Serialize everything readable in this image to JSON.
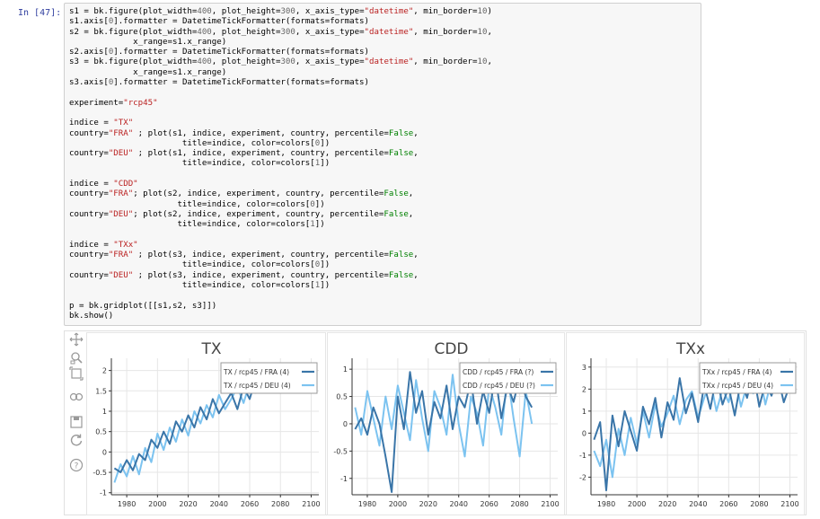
{
  "prompt": "In [47]:",
  "code_lines": [
    [
      [
        "s1 = bk.figure(plot_width=",
        "t"
      ],
      [
        "400",
        "n"
      ],
      [
        ", plot_height=",
        "t"
      ],
      [
        "300",
        "n"
      ],
      [
        ", x_axis_type=",
        "t"
      ],
      [
        "\"datetime\"",
        "s"
      ],
      [
        ", min_border=",
        "t"
      ],
      [
        "10",
        "n"
      ],
      [
        ")",
        "t"
      ]
    ],
    [
      [
        "s1.axis[",
        "t"
      ],
      [
        "0",
        "n"
      ],
      [
        "].formatter = DatetimeTickFormatter(formats=formats)",
        "t"
      ]
    ],
    [
      [
        "s2 = bk.figure(plot_width=",
        "t"
      ],
      [
        "400",
        "n"
      ],
      [
        ", plot_height=",
        "t"
      ],
      [
        "300",
        "n"
      ],
      [
        ", x_axis_type=",
        "t"
      ],
      [
        "\"datetime\"",
        "s"
      ],
      [
        ", min_border=",
        "t"
      ],
      [
        "10",
        "n"
      ],
      [
        ",",
        "t"
      ]
    ],
    [
      [
        "             x_range=s1.x_range)",
        "t"
      ]
    ],
    [
      [
        "s2.axis[",
        "t"
      ],
      [
        "0",
        "n"
      ],
      [
        "].formatter = DatetimeTickFormatter(formats=formats)",
        "t"
      ]
    ],
    [
      [
        "s3 = bk.figure(plot_width=",
        "t"
      ],
      [
        "400",
        "n"
      ],
      [
        ", plot_height=",
        "t"
      ],
      [
        "300",
        "n"
      ],
      [
        ", x_axis_type=",
        "t"
      ],
      [
        "\"datetime\"",
        "s"
      ],
      [
        ", min_border=",
        "t"
      ],
      [
        "10",
        "n"
      ],
      [
        ",",
        "t"
      ]
    ],
    [
      [
        "             x_range=s1.x_range)",
        "t"
      ]
    ],
    [
      [
        "s3.axis[",
        "t"
      ],
      [
        "0",
        "n"
      ],
      [
        "].formatter = DatetimeTickFormatter(formats=formats)",
        "t"
      ]
    ],
    [
      [
        "",
        "t"
      ]
    ],
    [
      [
        "experiment=",
        "t"
      ],
      [
        "\"rcp45\"",
        "s"
      ]
    ],
    [
      [
        "",
        "t"
      ]
    ],
    [
      [
        "indice = ",
        "t"
      ],
      [
        "\"TX\"",
        "s"
      ]
    ],
    [
      [
        "country=",
        "t"
      ],
      [
        "\"FRA\"",
        "s"
      ],
      [
        " ; plot(s1, indice, experiment, country, percentile=",
        "t"
      ],
      [
        "False",
        "k"
      ],
      [
        ",",
        "t"
      ]
    ],
    [
      [
        "                       title=indice, color=colors[",
        "t"
      ],
      [
        "0",
        "n"
      ],
      [
        "])",
        "t"
      ]
    ],
    [
      [
        "country=",
        "t"
      ],
      [
        "\"DEU\"",
        "s"
      ],
      [
        " ; plot(s1, indice, experiment, country, percentile=",
        "t"
      ],
      [
        "False",
        "k"
      ],
      [
        ",",
        "t"
      ]
    ],
    [
      [
        "                       title=indice, color=colors[",
        "t"
      ],
      [
        "1",
        "n"
      ],
      [
        "])",
        "t"
      ]
    ],
    [
      [
        "",
        "t"
      ]
    ],
    [
      [
        "indice = ",
        "t"
      ],
      [
        "\"CDD\"",
        "s"
      ]
    ],
    [
      [
        "country=",
        "t"
      ],
      [
        "\"FRA\"",
        "s"
      ],
      [
        "; plot(s2, indice, experiment, country, percentile=",
        "t"
      ],
      [
        "False",
        "k"
      ],
      [
        ",",
        "t"
      ]
    ],
    [
      [
        "                      title=indice, color=colors[",
        "t"
      ],
      [
        "0",
        "n"
      ],
      [
        "])",
        "t"
      ]
    ],
    [
      [
        "country=",
        "t"
      ],
      [
        "\"DEU\"",
        "s"
      ],
      [
        "; plot(s2, indice, experiment, country, percentile=",
        "t"
      ],
      [
        "False",
        "k"
      ],
      [
        ",",
        "t"
      ]
    ],
    [
      [
        "                      title=indice, color=colors[",
        "t"
      ],
      [
        "1",
        "n"
      ],
      [
        "])",
        "t"
      ]
    ],
    [
      [
        "",
        "t"
      ]
    ],
    [
      [
        "indice = ",
        "t"
      ],
      [
        "\"TXx\"",
        "s"
      ]
    ],
    [
      [
        "country=",
        "t"
      ],
      [
        "\"FRA\"",
        "s"
      ],
      [
        " ; plot(s3, indice, experiment, country, percentile=",
        "t"
      ],
      [
        "False",
        "k"
      ],
      [
        ",",
        "t"
      ]
    ],
    [
      [
        "                       title=indice, color=colors[",
        "t"
      ],
      [
        "0",
        "n"
      ],
      [
        "])",
        "t"
      ]
    ],
    [
      [
        "country=",
        "t"
      ],
      [
        "\"DEU\"",
        "s"
      ],
      [
        " ; plot(s3, indice, experiment, country, percentile=",
        "t"
      ],
      [
        "False",
        "k"
      ],
      [
        ",",
        "t"
      ]
    ],
    [
      [
        "                       title=indice, color=colors[",
        "t"
      ],
      [
        "1",
        "n"
      ],
      [
        "])",
        "t"
      ]
    ],
    [
      [
        "",
        "t"
      ]
    ],
    [
      [
        "p = bk.gridplot([[s1,s2, s3]])",
        "t"
      ]
    ],
    [
      [
        "bk.show()",
        "t"
      ]
    ]
  ],
  "toolbar": {
    "tools": [
      "pan-icon",
      "wheel-zoom-icon",
      "box-zoom-icon",
      "resize-icon",
      "save-icon",
      "reset-icon",
      "help-icon"
    ]
  },
  "colors": {
    "dark": "#3a75a8",
    "light": "#7cc3f0",
    "grid": "#e6e6e6"
  },
  "chart_data": [
    {
      "type": "line",
      "title": "TX",
      "x_ticks": [
        "1980",
        "2000",
        "2020",
        "2040",
        "2060",
        "2080",
        "2100"
      ],
      "y_ticks": [
        "-1",
        "-0.5",
        "0",
        "0.5",
        "1",
        "1.5",
        "2"
      ],
      "xlim": [
        1970,
        2105
      ],
      "ylim": [
        -1.05,
        2.3
      ],
      "legend_position": "top-right",
      "series": [
        {
          "name": "TX / rcp45 / FRA (4)",
          "color": "dark",
          "x": [
            1972,
            1976,
            1980,
            1984,
            1988,
            1992,
            1996,
            2000,
            2004,
            2008,
            2012,
            2016,
            2020,
            2024,
            2028,
            2032,
            2036,
            2040,
            2044,
            2048,
            2052,
            2056,
            2060,
            2064,
            2068,
            2072,
            2076,
            2080,
            2084,
            2088,
            2092,
            2096,
            2100
          ],
          "y": [
            -0.4,
            -0.5,
            -0.2,
            -0.45,
            -0.05,
            -0.2,
            0.3,
            0.1,
            0.5,
            0.2,
            0.75,
            0.5,
            0.9,
            0.6,
            1.1,
            0.8,
            1.3,
            0.95,
            1.2,
            1.45,
            1.05,
            1.6,
            1.3,
            1.8,
            1.5,
            1.75,
            1.55,
            1.9,
            1.6,
            1.85,
            1.7,
            1.95,
            1.75
          ]
        },
        {
          "name": "TX / rcp45 / DEU (4)",
          "color": "light",
          "x": [
            1972,
            1976,
            1980,
            1984,
            1988,
            1992,
            1996,
            2000,
            2004,
            2008,
            2012,
            2016,
            2020,
            2024,
            2028,
            2032,
            2036,
            2040,
            2044,
            2048,
            2052,
            2056,
            2060,
            2064,
            2068,
            2072,
            2076,
            2080,
            2084,
            2088,
            2092,
            2096,
            2100
          ],
          "y": [
            -0.75,
            -0.3,
            -0.6,
            -0.1,
            -0.55,
            0.1,
            -0.25,
            0.45,
            0.05,
            0.6,
            0.25,
            0.8,
            0.4,
            1.0,
            0.7,
            1.15,
            0.85,
            1.4,
            1.05,
            1.3,
            1.6,
            1.2,
            1.7,
            1.45,
            1.9,
            1.55,
            2.0,
            1.65,
            1.85,
            1.5,
            2.05,
            1.7,
            1.95
          ]
        }
      ]
    },
    {
      "type": "line",
      "title": "CDD",
      "x_ticks": [
        "1980",
        "2000",
        "2020",
        "2040",
        "2060",
        "2080",
        "2100"
      ],
      "y_ticks": [
        "-1",
        "-0.5",
        "0",
        "0.5",
        "1"
      ],
      "xlim": [
        1970,
        2105
      ],
      "ylim": [
        -1.3,
        1.2
      ],
      "legend_position": "top-right",
      "series": [
        {
          "name": "CDD / rcp45 / FRA (?)",
          "color": "dark",
          "x": [
            1972,
            1976,
            1980,
            1984,
            1988,
            1992,
            1996,
            2000,
            2004,
            2008,
            2012,
            2016,
            2020,
            2024,
            2028,
            2032,
            2036,
            2040,
            2044,
            2048,
            2052,
            2056,
            2060,
            2064,
            2068,
            2072,
            2076,
            2080,
            2084,
            2088
          ],
          "y": [
            -0.1,
            0.1,
            -0.2,
            0.3,
            0.0,
            -0.6,
            -1.25,
            0.5,
            -0.1,
            0.95,
            0.2,
            0.6,
            -0.2,
            0.4,
            0.1,
            0.7,
            -0.1,
            0.5,
            0.3,
            0.8,
            0.0,
            0.6,
            0.2,
            0.9,
            0.1,
            0.7,
            0.4,
            0.85,
            0.5,
            0.3
          ]
        },
        {
          "name": "CDD / rcp45 / DEU (?)",
          "color": "light",
          "x": [
            1972,
            1976,
            1980,
            1984,
            1988,
            1992,
            1996,
            2000,
            2004,
            2008,
            2012,
            2016,
            2020,
            2024,
            2028,
            2032,
            2036,
            2040,
            2044,
            2048,
            2052,
            2056,
            2060,
            2064,
            2068,
            2072,
            2076,
            2080,
            2084,
            2088
          ],
          "y": [
            0.3,
            -0.2,
            0.6,
            0.1,
            -0.4,
            0.5,
            -0.1,
            0.7,
            0.2,
            -0.3,
            0.8,
            0.1,
            -0.5,
            0.6,
            0.3,
            -0.2,
            0.9,
            0.0,
            -0.6,
            0.5,
            0.2,
            -0.4,
            0.7,
            0.3,
            -0.2,
            0.9,
            0.1,
            -0.6,
            0.6,
            0.0
          ]
        }
      ]
    },
    {
      "type": "line",
      "title": "TXx",
      "x_ticks": [
        "1980",
        "2000",
        "2020",
        "2040",
        "2060",
        "2080",
        "2100"
      ],
      "y_ticks": [
        "-2",
        "-1",
        "0",
        "1",
        "2",
        "3"
      ],
      "xlim": [
        1970,
        2105
      ],
      "ylim": [
        -2.8,
        3.4
      ],
      "legend_position": "top-right",
      "series": [
        {
          "name": "TXx / rcp45 / FRA (4)",
          "color": "dark",
          "x": [
            1972,
            1976,
            1980,
            1984,
            1988,
            1992,
            1996,
            2000,
            2004,
            2008,
            2012,
            2016,
            2020,
            2024,
            2028,
            2032,
            2036,
            2040,
            2044,
            2048,
            2052,
            2056,
            2060,
            2064,
            2068,
            2072,
            2076,
            2080,
            2084,
            2088,
            2092,
            2096,
            2100
          ],
          "y": [
            -0.3,
            0.5,
            -2.6,
            0.8,
            -0.6,
            1.0,
            0.1,
            -0.8,
            1.2,
            0.4,
            1.6,
            -0.2,
            1.4,
            0.6,
            2.5,
            0.9,
            1.8,
            0.5,
            2.2,
            1.1,
            2.6,
            1.3,
            2.1,
            0.8,
            2.4,
            1.6,
            2.8,
            1.2,
            2.3,
            1.7,
            2.6,
            1.4,
            2.2
          ]
        },
        {
          "name": "TXx / rcp45 / DEU (4)",
          "color": "light",
          "x": [
            1972,
            1976,
            1980,
            1984,
            1988,
            1992,
            1996,
            2000,
            2004,
            2008,
            2012,
            2016,
            2020,
            2024,
            2028,
            2032,
            2036,
            2040,
            2044,
            2048,
            2052,
            2056,
            2060,
            2064,
            2068,
            2072,
            2076,
            2080,
            2084,
            2088,
            2092,
            2096,
            2100
          ],
          "y": [
            -0.8,
            -1.5,
            -0.3,
            -2.0,
            0.2,
            -1.0,
            0.7,
            -0.5,
            1.0,
            -0.2,
            1.3,
            0.3,
            0.9,
            1.7,
            0.4,
            1.5,
            1.9,
            0.7,
            1.6,
            2.4,
            1.0,
            2.0,
            1.4,
            2.6,
            1.2,
            2.2,
            1.8,
            2.7,
            1.3,
            2.4,
            1.9,
            2.8,
            2.1
          ]
        }
      ]
    }
  ]
}
